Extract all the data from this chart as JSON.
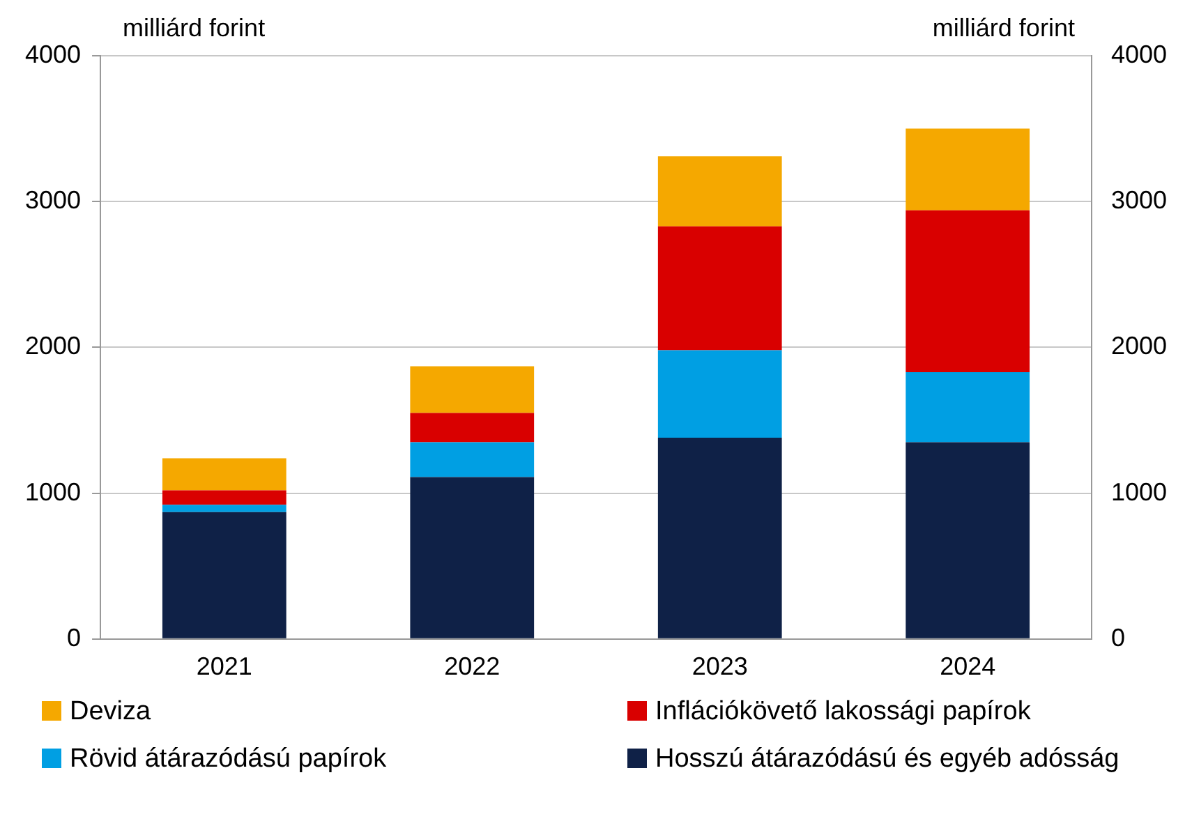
{
  "chart_data": {
    "type": "bar",
    "stacked": true,
    "ylabel": "milliárd forint",
    "y2label": "milliárd forint",
    "categories": [
      "2021",
      "2022",
      "2023",
      "2024"
    ],
    "series": [
      {
        "name": "Hosszú átárazódású és egyéb adósság",
        "color": "#0f2147",
        "values": [
          870,
          1110,
          1380,
          1350
        ]
      },
      {
        "name": "Rövid átárazódású papírok",
        "color": "#009fe3",
        "values": [
          50,
          240,
          600,
          480
        ]
      },
      {
        "name": "Inflációkövető lakossági papírok",
        "color": "#d90000",
        "values": [
          100,
          200,
          850,
          1110
        ]
      },
      {
        "name": "Deviza",
        "color": "#f5a800",
        "values": [
          220,
          320,
          480,
          560
        ]
      }
    ],
    "ylim": [
      0,
      4000
    ],
    "yticks": [
      0,
      1000,
      2000,
      3000,
      4000
    ],
    "y2lim": [
      0,
      4000
    ],
    "y2ticks": [
      0,
      1000,
      2000,
      3000,
      4000
    ],
    "grid": "y",
    "legend": "bottom"
  }
}
